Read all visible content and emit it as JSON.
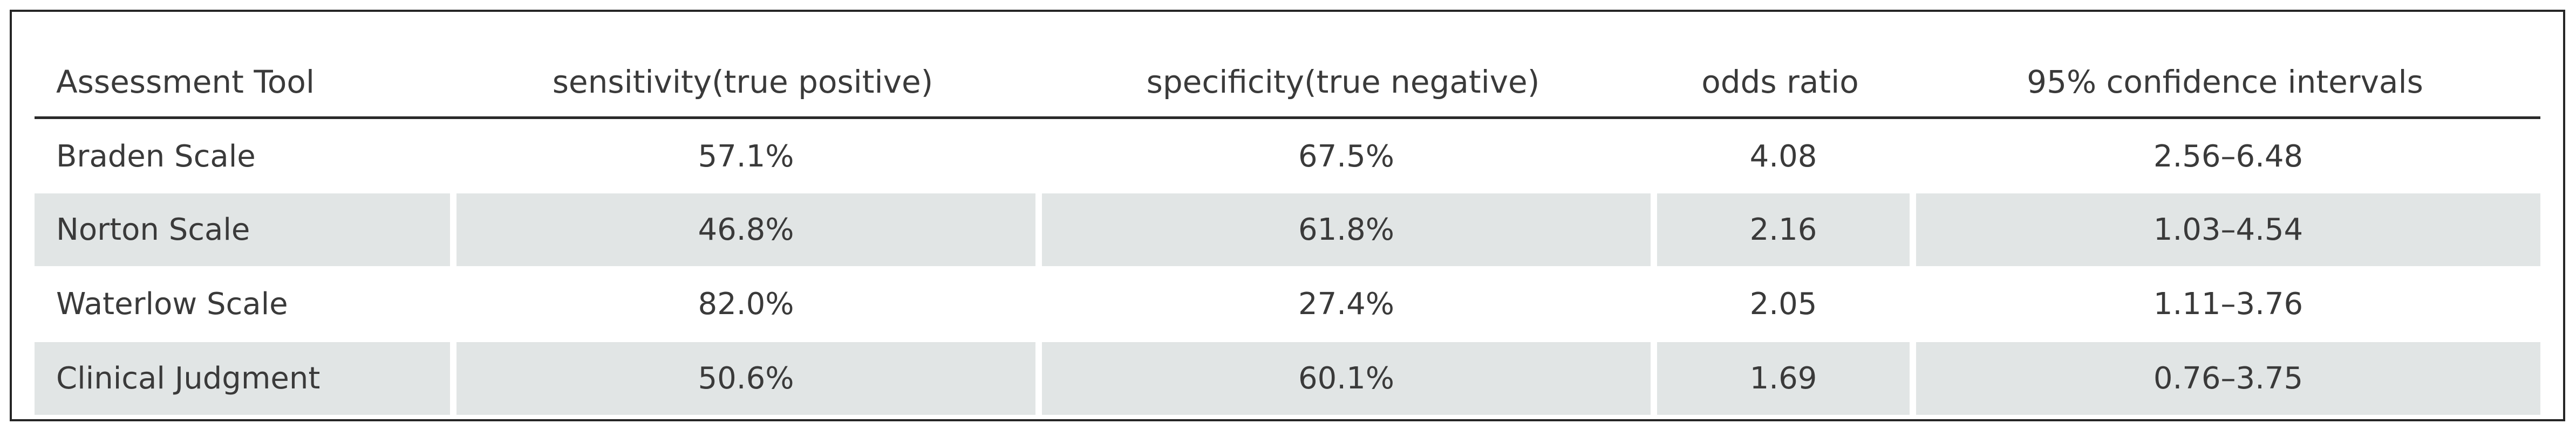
{
  "table": {
    "headers": [
      "Assessment Tool",
      "sensitivity(true positive)",
      "specificity(true negative)",
      "odds ratio",
      "95% confidence intervals"
    ],
    "rows": [
      [
        "Braden Scale",
        "57.1%",
        "67.5%",
        "4.08",
        "2.56–6.48"
      ],
      [
        "Norton Scale",
        "46.8%",
        "61.8%",
        "2.16",
        "1.03–4.54"
      ],
      [
        "Waterlow Scale",
        "82.0%",
        "27.4%",
        "2.05",
        "1.11–3.76"
      ],
      [
        "Clinical Judgment",
        "50.6%",
        "60.1%",
        "1.69",
        "0.76–3.75"
      ]
    ]
  },
  "colors": {
    "stripe": "#e1e5e5",
    "text": "#3a3a3a",
    "rule": "#2a2a2a",
    "border": "#262626"
  }
}
